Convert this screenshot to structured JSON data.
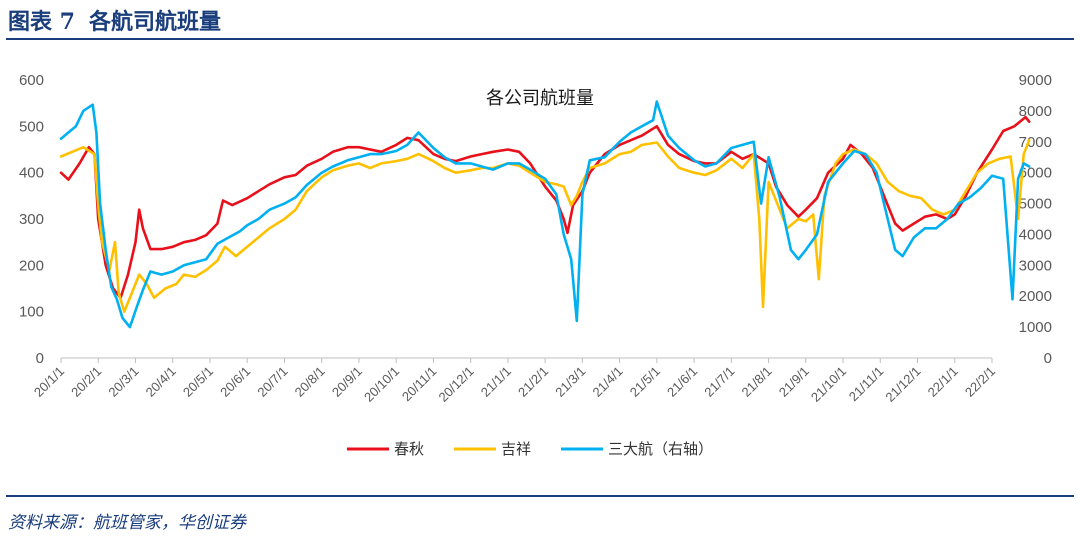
{
  "figure": {
    "label": "图表 7",
    "title": "各航司航班量",
    "source": "资料来源：航班管家，华创证券"
  },
  "chart_data": {
    "type": "line",
    "title": "各公司航班量",
    "left_axis": {
      "min": 0,
      "max": 600,
      "ticks": [
        0,
        100,
        200,
        300,
        400,
        500,
        600
      ]
    },
    "right_axis": {
      "min": 0,
      "max": 9000,
      "ticks": [
        0,
        1000,
        2000,
        3000,
        4000,
        5000,
        6000,
        7000,
        8000,
        9000
      ]
    },
    "x_ticks": [
      "20/1/1",
      "20/2/1",
      "20/3/1",
      "20/4/1",
      "20/5/1",
      "20/6/1",
      "20/7/1",
      "20/8/1",
      "20/9/1",
      "20/10/1",
      "20/11/1",
      "20/12/1",
      "21/1/1",
      "21/2/1",
      "21/3/1",
      "21/4/1",
      "21/5/1",
      "21/6/1",
      "21/7/1",
      "21/8/1",
      "21/9/1",
      "21/10/1",
      "21/11/1",
      "21/12/1",
      "22/1/1",
      "22/2/1"
    ],
    "legend_position": "bottom",
    "series": [
      {
        "name": "春秋",
        "axis": "left",
        "color": "#e8101a",
        "points": [
          [
            0,
            400
          ],
          [
            0.2,
            385
          ],
          [
            0.5,
            420
          ],
          [
            0.75,
            455
          ],
          [
            0.9,
            440
          ],
          [
            1.0,
            300
          ],
          [
            1.2,
            200
          ],
          [
            1.4,
            150
          ],
          [
            1.6,
            130
          ],
          [
            1.8,
            180
          ],
          [
            2.0,
            250
          ],
          [
            2.1,
            320
          ],
          [
            2.2,
            280
          ],
          [
            2.4,
            235
          ],
          [
            2.7,
            235
          ],
          [
            3.0,
            240
          ],
          [
            3.3,
            250
          ],
          [
            3.6,
            255
          ],
          [
            3.9,
            265
          ],
          [
            4.2,
            290
          ],
          [
            4.35,
            340
          ],
          [
            4.6,
            330
          ],
          [
            5.0,
            345
          ],
          [
            5.3,
            360
          ],
          [
            5.6,
            375
          ],
          [
            6.0,
            390
          ],
          [
            6.3,
            395
          ],
          [
            6.6,
            415
          ],
          [
            7.0,
            430
          ],
          [
            7.3,
            445
          ],
          [
            7.7,
            455
          ],
          [
            8.0,
            455
          ],
          [
            8.3,
            450
          ],
          [
            8.6,
            445
          ],
          [
            9.0,
            460
          ],
          [
            9.3,
            475
          ],
          [
            9.6,
            470
          ],
          [
            10.0,
            440
          ],
          [
            10.3,
            430
          ],
          [
            10.6,
            425
          ],
          [
            11.0,
            435
          ],
          [
            11.3,
            440
          ],
          [
            11.6,
            445
          ],
          [
            12.0,
            450
          ],
          [
            12.3,
            445
          ],
          [
            12.6,
            420
          ],
          [
            13.0,
            370
          ],
          [
            13.3,
            340
          ],
          [
            13.5,
            300
          ],
          [
            13.6,
            270
          ],
          [
            13.75,
            330
          ],
          [
            14.0,
            360
          ],
          [
            14.2,
            400
          ],
          [
            14.6,
            440
          ],
          [
            15.0,
            460
          ],
          [
            15.3,
            470
          ],
          [
            15.6,
            480
          ],
          [
            16.0,
            500
          ],
          [
            16.3,
            460
          ],
          [
            16.6,
            440
          ],
          [
            17.0,
            425
          ],
          [
            17.3,
            420
          ],
          [
            17.6,
            420
          ],
          [
            18.0,
            445
          ],
          [
            18.3,
            430
          ],
          [
            18.6,
            440
          ],
          [
            19.0,
            420
          ],
          [
            19.2,
            370
          ],
          [
            19.5,
            330
          ],
          [
            19.8,
            305
          ],
          [
            20.0,
            320
          ],
          [
            20.3,
            345
          ],
          [
            20.6,
            400
          ],
          [
            21.0,
            430
          ],
          [
            21.2,
            460
          ],
          [
            21.5,
            440
          ],
          [
            21.8,
            410
          ],
          [
            22.0,
            370
          ],
          [
            22.2,
            330
          ],
          [
            22.4,
            290
          ],
          [
            22.6,
            275
          ],
          [
            22.9,
            290
          ],
          [
            23.2,
            305
          ],
          [
            23.5,
            310
          ],
          [
            23.8,
            300
          ],
          [
            24.0,
            310
          ],
          [
            24.3,
            350
          ],
          [
            24.6,
            400
          ],
          [
            25.0,
            450
          ],
          [
            25.3,
            490
          ],
          [
            25.6,
            500
          ],
          [
            25.9,
            520
          ],
          [
            26.0,
            510
          ]
        ]
      },
      {
        "name": "吉祥",
        "axis": "left",
        "color": "#ffc000",
        "points": [
          [
            0,
            435
          ],
          [
            0.3,
            445
          ],
          [
            0.6,
            455
          ],
          [
            0.9,
            440
          ],
          [
            1.0,
            330
          ],
          [
            1.1,
            250
          ],
          [
            1.3,
            190
          ],
          [
            1.45,
            250
          ],
          [
            1.55,
            140
          ],
          [
            1.7,
            100
          ],
          [
            1.9,
            140
          ],
          [
            2.1,
            180
          ],
          [
            2.3,
            160
          ],
          [
            2.5,
            130
          ],
          [
            2.8,
            150
          ],
          [
            3.1,
            160
          ],
          [
            3.3,
            180
          ],
          [
            3.6,
            175
          ],
          [
            3.9,
            190
          ],
          [
            4.2,
            210
          ],
          [
            4.4,
            240
          ],
          [
            4.7,
            220
          ],
          [
            5.0,
            240
          ],
          [
            5.3,
            260
          ],
          [
            5.6,
            280
          ],
          [
            6.0,
            300
          ],
          [
            6.3,
            320
          ],
          [
            6.6,
            360
          ],
          [
            7.0,
            390
          ],
          [
            7.3,
            405
          ],
          [
            7.7,
            415
          ],
          [
            8.0,
            420
          ],
          [
            8.3,
            410
          ],
          [
            8.6,
            420
          ],
          [
            9.0,
            425
          ],
          [
            9.3,
            430
          ],
          [
            9.6,
            440
          ],
          [
            10.0,
            425
          ],
          [
            10.3,
            410
          ],
          [
            10.6,
            400
          ],
          [
            11.0,
            405
          ],
          [
            11.3,
            410
          ],
          [
            11.6,
            410
          ],
          [
            12.0,
            420
          ],
          [
            12.3,
            415
          ],
          [
            12.6,
            400
          ],
          [
            13.0,
            380
          ],
          [
            13.3,
            375
          ],
          [
            13.5,
            370
          ],
          [
            13.7,
            330
          ],
          [
            13.85,
            350
          ],
          [
            14.0,
            380
          ],
          [
            14.2,
            410
          ],
          [
            14.6,
            420
          ],
          [
            15.0,
            440
          ],
          [
            15.3,
            445
          ],
          [
            15.6,
            460
          ],
          [
            16.0,
            465
          ],
          [
            16.3,
            435
          ],
          [
            16.6,
            410
          ],
          [
            17.0,
            400
          ],
          [
            17.3,
            395
          ],
          [
            17.6,
            405
          ],
          [
            18.0,
            430
          ],
          [
            18.3,
            410
          ],
          [
            18.6,
            440
          ],
          [
            18.75,
            300
          ],
          [
            18.85,
            110
          ],
          [
            19.0,
            380
          ],
          [
            19.3,
            320
          ],
          [
            19.5,
            280
          ],
          [
            19.8,
            300
          ],
          [
            20.0,
            295
          ],
          [
            20.2,
            310
          ],
          [
            20.35,
            170
          ],
          [
            20.5,
            350
          ],
          [
            20.8,
            420
          ],
          [
            21.0,
            440
          ],
          [
            21.3,
            450
          ],
          [
            21.6,
            440
          ],
          [
            21.9,
            420
          ],
          [
            22.2,
            380
          ],
          [
            22.5,
            360
          ],
          [
            22.8,
            350
          ],
          [
            23.1,
            345
          ],
          [
            23.4,
            320
          ],
          [
            23.7,
            310
          ],
          [
            24.0,
            320
          ],
          [
            24.3,
            360
          ],
          [
            24.6,
            400
          ],
          [
            24.9,
            420
          ],
          [
            25.2,
            430
          ],
          [
            25.5,
            435
          ],
          [
            25.7,
            300
          ],
          [
            25.85,
            440
          ],
          [
            26.0,
            470
          ]
        ]
      },
      {
        "name": "三大航（右轴）",
        "axis": "right",
        "color": "#00b0f0",
        "points": [
          [
            0,
            7100
          ],
          [
            0.2,
            7300
          ],
          [
            0.4,
            7500
          ],
          [
            0.6,
            8000
          ],
          [
            0.85,
            8200
          ],
          [
            0.95,
            7300
          ],
          [
            1.05,
            5000
          ],
          [
            1.2,
            3500
          ],
          [
            1.35,
            2300
          ],
          [
            1.5,
            1900
          ],
          [
            1.65,
            1300
          ],
          [
            1.85,
            1000
          ],
          [
            2.05,
            1700
          ],
          [
            2.2,
            2200
          ],
          [
            2.4,
            2800
          ],
          [
            2.7,
            2700
          ],
          [
            3.0,
            2800
          ],
          [
            3.3,
            3000
          ],
          [
            3.6,
            3100
          ],
          [
            3.9,
            3200
          ],
          [
            4.2,
            3700
          ],
          [
            4.5,
            3900
          ],
          [
            4.8,
            4100
          ],
          [
            5.0,
            4300
          ],
          [
            5.3,
            4500
          ],
          [
            5.6,
            4800
          ],
          [
            6.0,
            5000
          ],
          [
            6.3,
            5200
          ],
          [
            6.6,
            5600
          ],
          [
            7.0,
            6000
          ],
          [
            7.3,
            6200
          ],
          [
            7.7,
            6400
          ],
          [
            8.0,
            6500
          ],
          [
            8.3,
            6600
          ],
          [
            8.6,
            6600
          ],
          [
            9.0,
            6700
          ],
          [
            9.3,
            6900
          ],
          [
            9.6,
            7300
          ],
          [
            10.0,
            6800
          ],
          [
            10.3,
            6500
          ],
          [
            10.6,
            6300
          ],
          [
            11.0,
            6300
          ],
          [
            11.3,
            6200
          ],
          [
            11.6,
            6100
          ],
          [
            12.0,
            6300
          ],
          [
            12.3,
            6300
          ],
          [
            12.6,
            6100
          ],
          [
            13.0,
            5800
          ],
          [
            13.3,
            5300
          ],
          [
            13.5,
            4000
          ],
          [
            13.7,
            3200
          ],
          [
            13.85,
            1200
          ],
          [
            14.0,
            5300
          ],
          [
            14.2,
            6400
          ],
          [
            14.6,
            6500
          ],
          [
            15.0,
            7000
          ],
          [
            15.3,
            7300
          ],
          [
            15.6,
            7500
          ],
          [
            15.9,
            7700
          ],
          [
            16.0,
            8300
          ],
          [
            16.3,
            7200
          ],
          [
            16.6,
            6800
          ],
          [
            17.0,
            6400
          ],
          [
            17.3,
            6200
          ],
          [
            17.6,
            6300
          ],
          [
            18.0,
            6800
          ],
          [
            18.3,
            6900
          ],
          [
            18.6,
            7000
          ],
          [
            18.8,
            5000
          ],
          [
            19.0,
            6500
          ],
          [
            19.3,
            5200
          ],
          [
            19.6,
            3500
          ],
          [
            19.8,
            3200
          ],
          [
            20.0,
            3500
          ],
          [
            20.3,
            4000
          ],
          [
            20.6,
            5700
          ],
          [
            21.0,
            6300
          ],
          [
            21.3,
            6700
          ],
          [
            21.6,
            6600
          ],
          [
            21.9,
            6000
          ],
          [
            22.2,
            4500
          ],
          [
            22.4,
            3500
          ],
          [
            22.6,
            3300
          ],
          [
            22.9,
            3900
          ],
          [
            23.2,
            4200
          ],
          [
            23.5,
            4200
          ],
          [
            23.8,
            4500
          ],
          [
            24.1,
            5000
          ],
          [
            24.4,
            5200
          ],
          [
            24.7,
            5500
          ],
          [
            25.0,
            5900
          ],
          [
            25.3,
            5800
          ],
          [
            25.55,
            1900
          ],
          [
            25.7,
            5800
          ],
          [
            25.85,
            6300
          ],
          [
            26.0,
            6200
          ]
        ]
      }
    ]
  }
}
